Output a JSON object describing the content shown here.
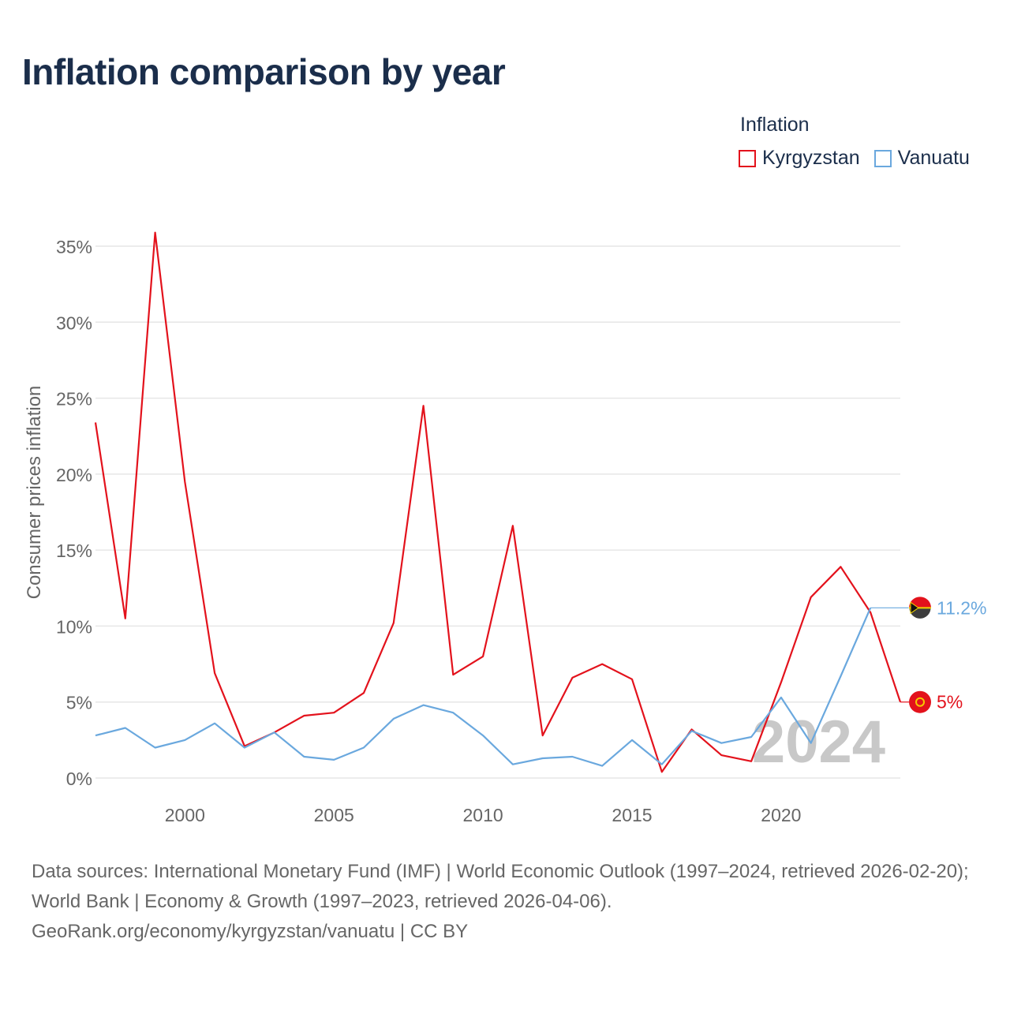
{
  "title": "Inflation comparison by year",
  "legend_title": "Inflation",
  "footer": {
    "sources": "Data sources: International Monetary Fund (IMF) | World Economic Outlook (1997–2024, retrieved 2026-02-20); World Bank | Economy & Growth (1997–2023, retrieved 2026-04-06).",
    "credit": "GeoRank.org/economy/kyrgyzstan/vanuatu | CC BY"
  },
  "chart_data": {
    "type": "line",
    "title": "Inflation comparison by year",
    "xlabel": "",
    "ylabel": "Consumer prices inflation",
    "xlim": [
      1997,
      2024
    ],
    "ylim": [
      0,
      35
    ],
    "x_ticks": [
      2000,
      2005,
      2010,
      2015,
      2020
    ],
    "y_ticks": [
      0,
      5,
      10,
      15,
      20,
      25,
      30,
      35
    ],
    "y_tick_labels": [
      "0%",
      "5%",
      "10%",
      "15%",
      "20%",
      "25%",
      "30%",
      "35%"
    ],
    "grid": true,
    "legend_position": "top-right",
    "watermark_year": "2024",
    "series": [
      {
        "name": "Kyrgyzstan",
        "color": "#e3121c",
        "end_label": "5%",
        "x": [
          1997,
          1998,
          1999,
          2000,
          2001,
          2002,
          2003,
          2004,
          2005,
          2006,
          2007,
          2008,
          2009,
          2010,
          2011,
          2012,
          2013,
          2014,
          2015,
          2016,
          2017,
          2018,
          2019,
          2020,
          2021,
          2022,
          2023,
          2024
        ],
        "values": [
          23.4,
          10.5,
          35.9,
          19.5,
          6.9,
          2.1,
          3.0,
          4.1,
          4.3,
          5.6,
          10.2,
          24.5,
          6.8,
          8.0,
          16.6,
          2.8,
          6.6,
          7.5,
          6.5,
          0.4,
          3.2,
          1.5,
          1.1,
          6.3,
          11.9,
          13.9,
          10.9,
          5.0
        ]
      },
      {
        "name": "Vanuatu",
        "color": "#6aa8de",
        "end_label": "11.2%",
        "x": [
          1997,
          1998,
          1999,
          2000,
          2001,
          2002,
          2003,
          2004,
          2005,
          2006,
          2007,
          2008,
          2009,
          2010,
          2011,
          2012,
          2013,
          2014,
          2015,
          2016,
          2017,
          2018,
          2019,
          2020,
          2021,
          2022,
          2023
        ],
        "values": [
          2.8,
          3.3,
          2.0,
          2.5,
          3.6,
          2.0,
          3.0,
          1.4,
          1.2,
          2.0,
          3.9,
          4.8,
          4.3,
          2.8,
          0.9,
          1.3,
          1.4,
          0.8,
          2.5,
          0.9,
          3.1,
          2.3,
          2.7,
          5.3,
          2.3,
          6.7,
          11.2
        ]
      }
    ]
  }
}
